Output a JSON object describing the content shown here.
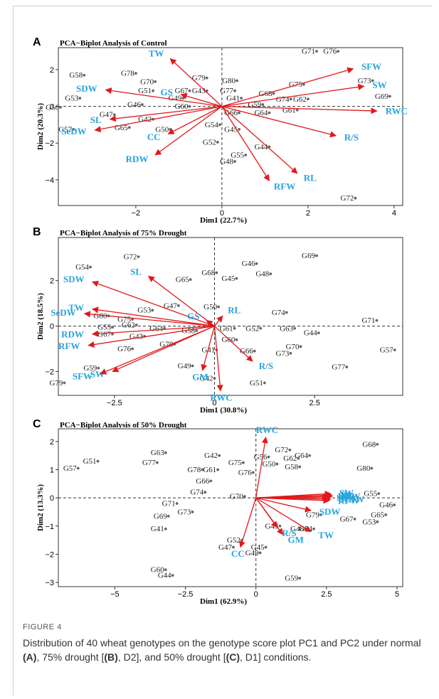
{
  "figure_label": "FIGURE 4",
  "caption": {
    "t1": "Distribution of 40 wheat genotypes on the genotype score plot PC1 and PC2 under normal ",
    "a": "(A)",
    "t2": ", 75% drought [",
    "b": "(B)",
    "t3": ", D2], and 50% drought [",
    "c": "(C)",
    "t4": ", D1] conditions."
  },
  "colors": {
    "arrow": "#e0191b",
    "trait_label": "#29a3dc",
    "point": "#666666",
    "guide": "#333333"
  },
  "chart_data": [
    {
      "panel": "A",
      "type": "scatter",
      "title": "PCA−Biplot Analysis of Control",
      "xlabel": "Dim1 (22.7%)",
      "ylabel": "Dim2 (20.3%)",
      "xlim": [
        -3.8,
        4.2
      ],
      "ylim": [
        -5.4,
        3.2
      ],
      "xticks": [
        -2,
        0,
        2,
        4
      ],
      "yticks": [
        -4,
        -2,
        0,
        2
      ],
      "grid": false,
      "reference_lines": [
        0,
        0
      ],
      "genotypes": [
        {
          "label": "G71",
          "x": 2.2,
          "y": 3.0
        },
        {
          "label": "G76",
          "x": 2.7,
          "y": 3.0
        },
        {
          "label": "G58",
          "x": -3.2,
          "y": 1.7
        },
        {
          "label": "G78",
          "x": -2.0,
          "y": 1.8
        },
        {
          "label": "G70",
          "x": -1.55,
          "y": 1.35
        },
        {
          "label": "G79",
          "x": -0.35,
          "y": 1.55
        },
        {
          "label": "G80",
          "x": 0.35,
          "y": 1.4
        },
        {
          "label": "G75",
          "x": 1.9,
          "y": 1.2
        },
        {
          "label": "G73",
          "x": 3.5,
          "y": 1.4
        },
        {
          "label": "G51",
          "x": -1.6,
          "y": 0.85
        },
        {
          "label": "G67",
          "x": -0.75,
          "y": 0.85
        },
        {
          "label": "G43",
          "x": -0.35,
          "y": 0.85
        },
        {
          "label": "G77",
          "x": 0.3,
          "y": 0.85
        },
        {
          "label": "G68",
          "x": 1.2,
          "y": 0.7
        },
        {
          "label": "G53",
          "x": -3.3,
          "y": 0.45
        },
        {
          "label": "G49",
          "x": -0.9,
          "y": 0.45
        },
        {
          "label": "G41",
          "x": 0.45,
          "y": 0.45
        },
        {
          "label": "G74",
          "x": 1.6,
          "y": 0.4
        },
        {
          "label": "G62",
          "x": 2.0,
          "y": 0.4
        },
        {
          "label": "G69",
          "x": 3.9,
          "y": 0.55
        },
        {
          "label": "G46",
          "x": -1.85,
          "y": 0.1
        },
        {
          "label": "G60",
          "x": -0.75,
          "y": 0.0
        },
        {
          "label": "G59",
          "x": 0.95,
          "y": 0.1
        },
        {
          "label": "G56",
          "x": -3.75,
          "y": -0.05
        },
        {
          "label": "G66",
          "x": 0.4,
          "y": -0.35
        },
        {
          "label": "G64",
          "x": 1.1,
          "y": -0.35
        },
        {
          "label": "G61",
          "x": 1.75,
          "y": -0.2
        },
        {
          "label": "G47",
          "x": -2.5,
          "y": -0.45
        },
        {
          "label": "G42",
          "x": -1.6,
          "y": -0.7
        },
        {
          "label": "G65",
          "x": -2.15,
          "y": -1.15
        },
        {
          "label": "G50",
          "x": -1.2,
          "y": -1.25
        },
        {
          "label": "G54",
          "x": -0.05,
          "y": -1.0
        },
        {
          "label": "G45",
          "x": 0.4,
          "y": -1.25
        },
        {
          "label": "G57",
          "x": -3.45,
          "y": -1.25
        },
        {
          "label": "G52",
          "x": -0.1,
          "y": -1.95
        },
        {
          "label": "G44",
          "x": 1.1,
          "y": -2.2
        },
        {
          "label": "G55",
          "x": 0.55,
          "y": -2.65
        },
        {
          "label": "G48",
          "x": 0.3,
          "y": -3.0
        },
        {
          "label": "G72",
          "x": 3.1,
          "y": -5.0
        }
      ],
      "loadings": [
        {
          "label": "TW",
          "x": -1.2,
          "y": 2.6
        },
        {
          "label": "SDW",
          "x": -2.7,
          "y": 0.9
        },
        {
          "label": "GS",
          "x": -0.95,
          "y": 0.65
        },
        {
          "label": "SL",
          "x": -2.6,
          "y": -0.7
        },
        {
          "label": "SeDW",
          "x": -2.95,
          "y": -1.3
        },
        {
          "label": "CC",
          "x": -1.25,
          "y": -1.5
        },
        {
          "label": "RDW",
          "x": -1.55,
          "y": -2.65
        },
        {
          "label": "SFW",
          "x": 3.05,
          "y": 2.05
        },
        {
          "label": "SW",
          "x": 3.3,
          "y": 1.1
        },
        {
          "label": "RWC",
          "x": 3.6,
          "y": -0.25
        },
        {
          "label": "R/S",
          "x": 2.65,
          "y": -1.6
        },
        {
          "label": "RL",
          "x": 1.75,
          "y": -3.65
        },
        {
          "label": "RFW",
          "x": 1.1,
          "y": -4.05
        }
      ]
    },
    {
      "panel": "B",
      "type": "scatter",
      "title": "PCA−Biplot Analysis of 75% Drought",
      "xlabel": "Dim1 (30.8%)",
      "ylabel": "Dim2 (18.5%)",
      "xlim": [
        -3.9,
        4.7
      ],
      "ylim": [
        -3.05,
        3.9
      ],
      "xticks": [
        -2.5,
        0.0,
        2.5
      ],
      "yticks": [
        -2,
        0,
        2
      ],
      "grid": false,
      "reference_lines": [
        0,
        0
      ],
      "genotypes": [
        {
          "label": "G72",
          "x": -1.9,
          "y": 3.05
        },
        {
          "label": "G69",
          "x": 2.55,
          "y": 3.1
        },
        {
          "label": "G46",
          "x": 1.05,
          "y": 2.75
        },
        {
          "label": "G54",
          "x": -3.1,
          "y": 2.6
        },
        {
          "label": "G68",
          "x": 0.05,
          "y": 2.35
        },
        {
          "label": "G65",
          "x": -0.6,
          "y": 2.05
        },
        {
          "label": "G45",
          "x": 0.55,
          "y": 2.1
        },
        {
          "label": "G48",
          "x": 1.4,
          "y": 2.3
        },
        {
          "label": "G47",
          "x": -0.9,
          "y": 0.9
        },
        {
          "label": "G53",
          "x": -1.55,
          "y": 0.7
        },
        {
          "label": "G50",
          "x": 0.1,
          "y": 0.85
        },
        {
          "label": "G80",
          "x": -2.65,
          "y": 0.45
        },
        {
          "label": "G75",
          "x": -2.05,
          "y": 0.3
        },
        {
          "label": "G74",
          "x": 1.8,
          "y": 0.6
        },
        {
          "label": "G71",
          "x": 4.05,
          "y": 0.25
        },
        {
          "label": "G55",
          "x": -2.55,
          "y": -0.05
        },
        {
          "label": "G62",
          "x": -1.95,
          "y": 0.05
        },
        {
          "label": "G64",
          "x": -1.25,
          "y": -0.1
        },
        {
          "label": "G58",
          "x": -0.45,
          "y": -0.2
        },
        {
          "label": "G61",
          "x": 0.5,
          "y": -0.1
        },
        {
          "label": "G52",
          "x": 1.15,
          "y": -0.1
        },
        {
          "label": "G63",
          "x": 2.0,
          "y": -0.1
        },
        {
          "label": "G44",
          "x": 2.6,
          "y": -0.3
        },
        {
          "label": "G67",
          "x": -2.55,
          "y": -0.35
        },
        {
          "label": "G43",
          "x": -1.75,
          "y": -0.45
        },
        {
          "label": "G60",
          "x": 0.55,
          "y": -0.6
        },
        {
          "label": "G78",
          "x": -1.0,
          "y": -0.8
        },
        {
          "label": "G70",
          "x": 2.15,
          "y": -0.9
        },
        {
          "label": "G76",
          "x": -2.05,
          "y": -1.0
        },
        {
          "label": "G41",
          "x": 0.05,
          "y": -1.05
        },
        {
          "label": "G66",
          "x": 1.0,
          "y": -1.1
        },
        {
          "label": "G73",
          "x": 1.9,
          "y": -1.2
        },
        {
          "label": "G57",
          "x": 4.5,
          "y": -1.05
        },
        {
          "label": "G59",
          "x": -2.9,
          "y": -1.85
        },
        {
          "label": "G49",
          "x": -0.55,
          "y": -1.75
        },
        {
          "label": "G77",
          "x": 3.3,
          "y": -1.8
        },
        {
          "label": "G42",
          "x": 0.0,
          "y": -2.3
        },
        {
          "label": "G51",
          "x": 1.25,
          "y": -2.5
        },
        {
          "label": "G79",
          "x": -3.75,
          "y": -2.5
        }
      ],
      "loadings": [
        {
          "label": "SL",
          "x": -1.65,
          "y": 2.2
        },
        {
          "label": "SDW",
          "x": -3.05,
          "y": 1.95
        },
        {
          "label": "TW",
          "x": -3.05,
          "y": 0.75
        },
        {
          "label": "SeDW",
          "x": -3.25,
          "y": 0.55
        },
        {
          "label": "GS",
          "x": -0.2,
          "y": 0.25
        },
        {
          "label": "RL",
          "x": 0.2,
          "y": 0.45
        },
        {
          "label": "RDW",
          "x": -3.05,
          "y": -0.35
        },
        {
          "label": "RFW",
          "x": -3.15,
          "y": -0.85
        },
        {
          "label": "SW",
          "x": -2.55,
          "y": -2.0
        },
        {
          "label": "SFW",
          "x": -2.85,
          "y": -2.1
        },
        {
          "label": "GM",
          "x": -0.3,
          "y": -1.95
        },
        {
          "label": "RWC",
          "x": 0.15,
          "y": -2.85
        },
        {
          "label": "R/S",
          "x": 0.95,
          "y": -1.55
        }
      ]
    },
    {
      "panel": "C",
      "type": "scatter",
      "title": "PCA−Biplot Analysis of 50% Drought",
      "xlabel": "Dim1 (62.9%)",
      "ylabel": "Dim2 (13.3%)",
      "xlim": [
        -7.0,
        5.2
      ],
      "ylim": [
        -3.15,
        2.45
      ],
      "xticks": [
        -5.0,
        -2.5,
        0.0,
        2.5,
        5.0
      ],
      "yticks": [
        -3,
        -2,
        -1,
        0,
        1,
        2
      ],
      "grid": false,
      "reference_lines": [
        0,
        0
      ],
      "genotypes": [
        {
          "label": "G68",
          "x": 4.3,
          "y": 1.9
        },
        {
          "label": "G63",
          "x": -3.2,
          "y": 1.6
        },
        {
          "label": "G72",
          "x": 1.2,
          "y": 1.7
        },
        {
          "label": "G64",
          "x": 1.9,
          "y": 1.5
        },
        {
          "label": "G42",
          "x": -1.3,
          "y": 1.5
        },
        {
          "label": "G56",
          "x": 0.45,
          "y": 1.45
        },
        {
          "label": "G62",
          "x": 1.5,
          "y": 1.4
        },
        {
          "label": "G51",
          "x": -5.6,
          "y": 1.3
        },
        {
          "label": "G75",
          "x": -0.45,
          "y": 1.25
        },
        {
          "label": "G50",
          "x": 0.75,
          "y": 1.2
        },
        {
          "label": "G77",
          "x": -3.5,
          "y": 1.25
        },
        {
          "label": "G58",
          "x": 1.55,
          "y": 1.1
        },
        {
          "label": "G80",
          "x": 4.1,
          "y": 1.05
        },
        {
          "label": "G57",
          "x": -6.3,
          "y": 1.05
        },
        {
          "label": "G78",
          "x": -1.9,
          "y": 1.0
        },
        {
          "label": "G61",
          "x": -1.35,
          "y": 1.0
        },
        {
          "label": "G76",
          "x": -0.1,
          "y": 0.9
        },
        {
          "label": "G66",
          "x": -1.6,
          "y": 0.6
        },
        {
          "label": "G55",
          "x": 4.35,
          "y": 0.15
        },
        {
          "label": "G74",
          "x": -1.8,
          "y": 0.2
        },
        {
          "label": "G70",
          "x": -0.4,
          "y": 0.05
        },
        {
          "label": "G71",
          "x": -2.8,
          "y": -0.2
        },
        {
          "label": "G46",
          "x": 4.9,
          "y": -0.25
        },
        {
          "label": "G73",
          "x": -2.25,
          "y": -0.5
        },
        {
          "label": "G65",
          "x": 4.6,
          "y": -0.6
        },
        {
          "label": "G69",
          "x": -3.1,
          "y": -0.65
        },
        {
          "label": "G79",
          "x": 2.3,
          "y": -0.6
        },
        {
          "label": "G67",
          "x": 3.5,
          "y": -0.75
        },
        {
          "label": "G53",
          "x": 4.3,
          "y": -0.85
        },
        {
          "label": "G48",
          "x": 1.75,
          "y": -1.1
        },
        {
          "label": "G54",
          "x": 2.05,
          "y": -1.1
        },
        {
          "label": "G43",
          "x": 0.85,
          "y": -1.0
        },
        {
          "label": "G41",
          "x": -3.2,
          "y": -1.1
        },
        {
          "label": "G52",
          "x": -0.5,
          "y": -1.5
        },
        {
          "label": "G47",
          "x": -0.8,
          "y": -1.75
        },
        {
          "label": "G45",
          "x": 0.35,
          "y": -1.75
        },
        {
          "label": "G49",
          "x": 0.15,
          "y": -1.95
        },
        {
          "label": "G60",
          "x": -3.2,
          "y": -2.55
        },
        {
          "label": "G44",
          "x": -2.95,
          "y": -2.75
        },
        {
          "label": "G59",
          "x": 1.55,
          "y": -2.85
        }
      ],
      "loadings": [
        {
          "label": "RWC",
          "x": 0.35,
          "y": 2.15
        },
        {
          "label": "SW",
          "x": 2.65,
          "y": 0.15
        },
        {
          "label": "RL",
          "x": 2.7,
          "y": 0.1
        },
        {
          "label": "RDW",
          "x": 2.6,
          "y": 0.05
        },
        {
          "label": "SFW",
          "x": 2.55,
          "y": 0.0
        },
        {
          "label": "SL",
          "x": 2.7,
          "y": 0.05
        },
        {
          "label": "SeDW",
          "x": 2.65,
          "y": -0.05
        },
        {
          "label": "RFW",
          "x": 2.6,
          "y": -0.1
        },
        {
          "label": "SDW",
          "x": 1.95,
          "y": -0.45
        },
        {
          "label": "TW",
          "x": 1.95,
          "y": -1.2
        },
        {
          "label": "R/S",
          "x": 0.75,
          "y": -1.05
        },
        {
          "label": "GM",
          "x": 0.95,
          "y": -1.3
        },
        {
          "label": "CC",
          "x": -0.55,
          "y": -1.75
        }
      ]
    }
  ]
}
